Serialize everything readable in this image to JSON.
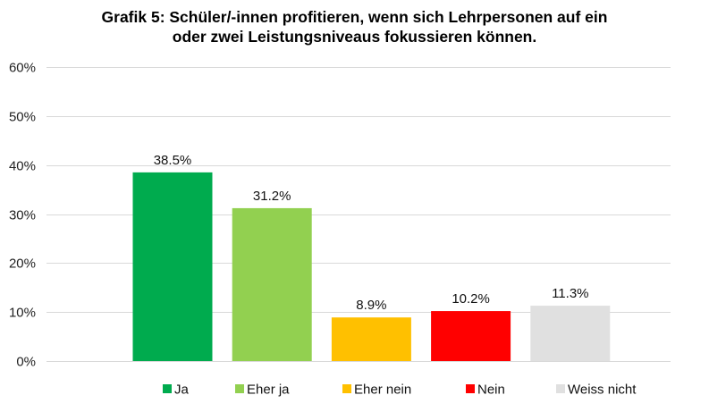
{
  "chart_data": {
    "type": "bar",
    "title_lines": [
      "Grafik 5: Schüler/-innen profitieren, wenn sich Lehrpersonen auf ein",
      "oder zwei Leistungsniveaus fokussieren können."
    ],
    "categories": [
      "Ja",
      "Eher ja",
      "Eher nein",
      "Nein",
      "Weiss nicht"
    ],
    "values": [
      38.5,
      31.2,
      8.9,
      10.2,
      11.3
    ],
    "data_labels": [
      "38.5%",
      "31.2%",
      "8.9%",
      "10.2%",
      "11.3%"
    ],
    "colors": [
      "#00AB4E",
      "#92D050",
      "#FFC000",
      "#FF0000",
      "#E0E0E0"
    ],
    "xlabel": "",
    "ylabel": "",
    "ylim": [
      0,
      60
    ],
    "yticks": [
      0,
      10,
      20,
      30,
      40,
      50,
      60
    ],
    "ytick_labels": [
      "0%",
      "10%",
      "20%",
      "30%",
      "40%",
      "50%",
      "60%"
    ],
    "grid": true,
    "grid_color": "#D9D9D9",
    "legend": {
      "placement": "bottom",
      "entries": [
        "Ja",
        "Eher ja",
        "Eher nein",
        "Nein",
        "Weiss nicht"
      ]
    }
  }
}
